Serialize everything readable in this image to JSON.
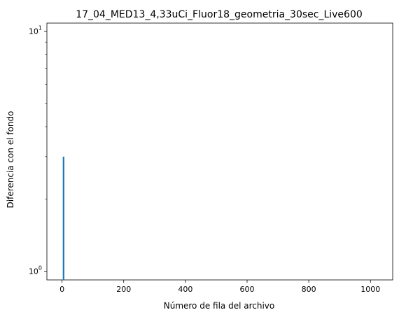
{
  "chart_data": {
    "type": "line",
    "title": "17_04_MED13_4,33uCi_Fluor18_geometria_30sec_Live600",
    "xlabel": "Número de fila del archivo",
    "ylabel": "Diferencia con el fondo",
    "xlim": [
      -49,
      1072
    ],
    "ylim": [
      0.92,
      10.8
    ],
    "yscale": "log",
    "grid": false,
    "x_ticks": [
      {
        "value": 0,
        "label": "0"
      },
      {
        "value": 200,
        "label": "200"
      },
      {
        "value": 400,
        "label": "400"
      },
      {
        "value": 600,
        "label": "600"
      },
      {
        "value": 800,
        "label": "800"
      },
      {
        "value": 1000,
        "label": "1000"
      }
    ],
    "y_major_ticks": [
      {
        "value": 1,
        "label": "10",
        "exp": "0"
      },
      {
        "value": 10,
        "label": "10",
        "exp": "1"
      }
    ],
    "y_minor_ticks": [
      2,
      3,
      4,
      5,
      6,
      7,
      8,
      9
    ],
    "series": [
      {
        "color": "#1f77b4",
        "x": [
          5,
          5
        ],
        "y": [
          0.92,
          3.0
        ]
      }
    ]
  }
}
